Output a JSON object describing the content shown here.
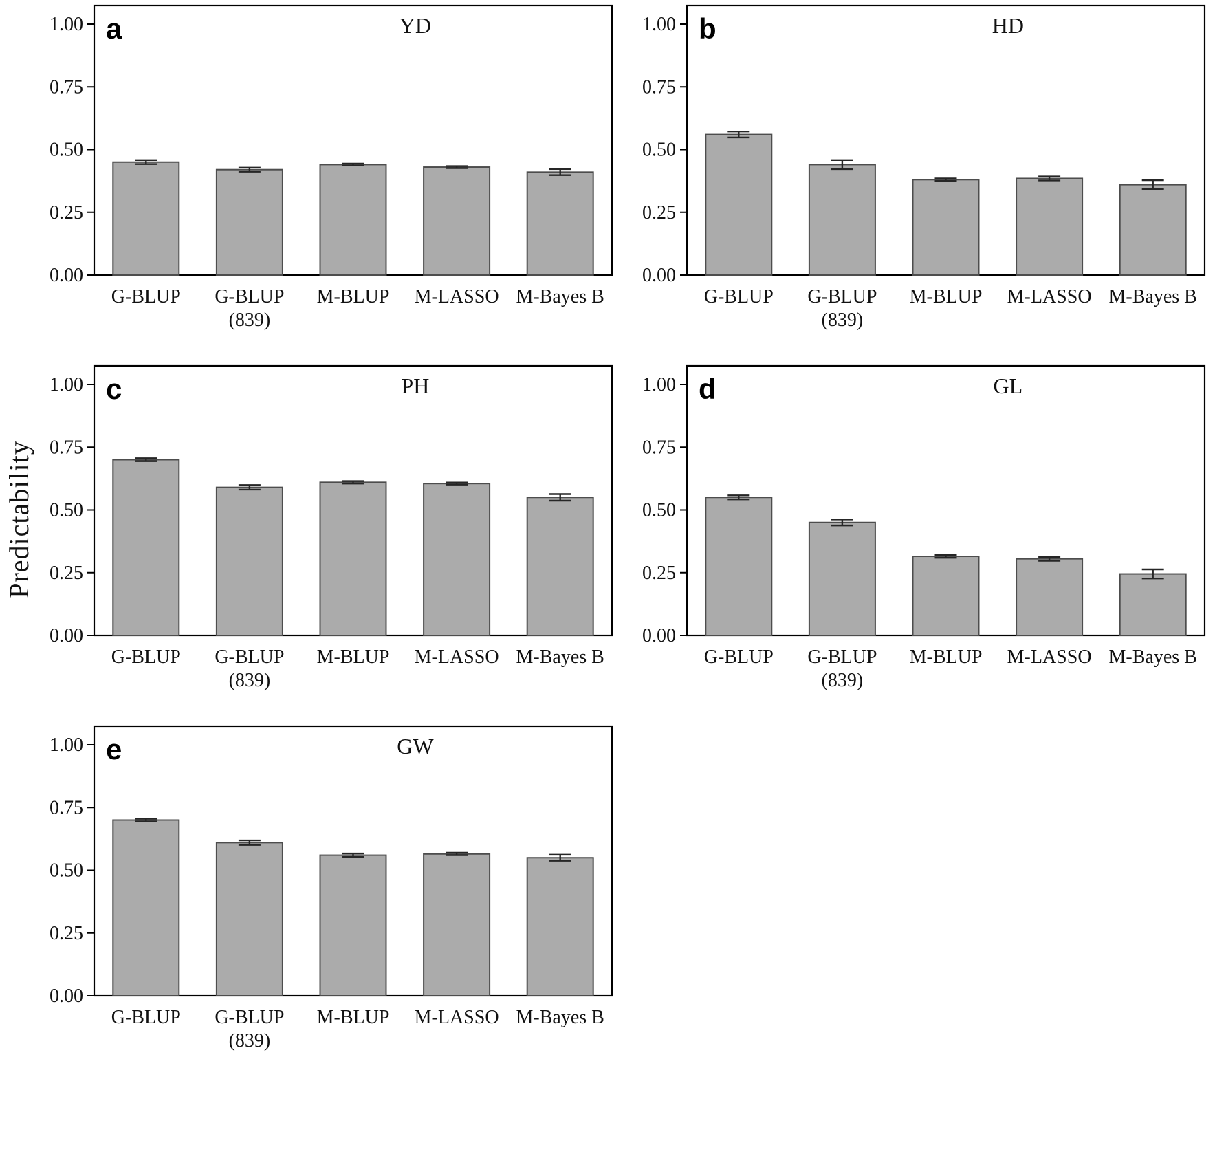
{
  "figure": {
    "ylabel": "Predictability"
  },
  "colors": {
    "bar_fill": "#ababab",
    "bar_stroke": "#4d4d4d",
    "error_bar": "#262626",
    "axis": "#000000",
    "background": "#ffffff"
  },
  "chart_data": [
    {
      "type": "bar",
      "panel": "a",
      "title": "YD",
      "categories": [
        "G-BLUP",
        "G-BLUP (839)",
        "M-BLUP",
        "M-LASSO",
        "M-Bayes B"
      ],
      "category_lines": [
        [
          "G-BLUP"
        ],
        [
          "G-BLUP",
          "(839)"
        ],
        [
          "M-BLUP"
        ],
        [
          "M-LASSO"
        ],
        [
          "M-Bayes B"
        ]
      ],
      "values": [
        0.45,
        0.42,
        0.44,
        0.43,
        0.41
      ],
      "errors": [
        0.008,
        0.008,
        0.004,
        0.004,
        0.012
      ],
      "xlabel": "",
      "ylabel": "Predictability",
      "ylim": [
        0,
        1.0
      ],
      "yticks": [
        0,
        0.25,
        0.5,
        0.75,
        1.0
      ],
      "ytick_labels": [
        "0.00",
        "0.25",
        "0.50",
        "0.75",
        "1.00"
      ],
      "grid": false,
      "legend": "none"
    },
    {
      "type": "bar",
      "panel": "b",
      "title": "HD",
      "categories": [
        "G-BLUP",
        "G-BLUP (839)",
        "M-BLUP",
        "M-LASSO",
        "M-Bayes B"
      ],
      "category_lines": [
        [
          "G-BLUP"
        ],
        [
          "G-BLUP",
          "(839)"
        ],
        [
          "M-BLUP"
        ],
        [
          "M-LASSO"
        ],
        [
          "M-Bayes B"
        ]
      ],
      "values": [
        0.56,
        0.44,
        0.38,
        0.385,
        0.36
      ],
      "errors": [
        0.012,
        0.018,
        0.005,
        0.008,
        0.018
      ],
      "xlabel": "",
      "ylabel": "Predictability",
      "ylim": [
        0,
        1.0
      ],
      "yticks": [
        0,
        0.25,
        0.5,
        0.75,
        1.0
      ],
      "ytick_labels": [
        "0.00",
        "0.25",
        "0.50",
        "0.75",
        "1.00"
      ],
      "grid": false,
      "legend": "none"
    },
    {
      "type": "bar",
      "panel": "c",
      "title": "PH",
      "categories": [
        "G-BLUP",
        "G-BLUP (839)",
        "M-BLUP",
        "M-LASSO",
        "M-Bayes B"
      ],
      "category_lines": [
        [
          "G-BLUP"
        ],
        [
          "G-BLUP",
          "(839)"
        ],
        [
          "M-BLUP"
        ],
        [
          "M-LASSO"
        ],
        [
          "M-Bayes B"
        ]
      ],
      "values": [
        0.7,
        0.59,
        0.61,
        0.605,
        0.55
      ],
      "errors": [
        0.006,
        0.009,
        0.005,
        0.004,
        0.013
      ],
      "xlabel": "",
      "ylabel": "Predictability",
      "ylim": [
        0,
        1.0
      ],
      "yticks": [
        0,
        0.25,
        0.5,
        0.75,
        1.0
      ],
      "ytick_labels": [
        "0.00",
        "0.25",
        "0.50",
        "0.75",
        "1.00"
      ],
      "grid": false,
      "legend": "none"
    },
    {
      "type": "bar",
      "panel": "d",
      "title": "GL",
      "categories": [
        "G-BLUP",
        "G-BLUP (839)",
        "M-BLUP",
        "M-LASSO",
        "M-Bayes B"
      ],
      "category_lines": [
        [
          "G-BLUP"
        ],
        [
          "G-BLUP",
          "(839)"
        ],
        [
          "M-BLUP"
        ],
        [
          "M-LASSO"
        ],
        [
          "M-Bayes B"
        ]
      ],
      "values": [
        0.55,
        0.45,
        0.315,
        0.305,
        0.245
      ],
      "errors": [
        0.008,
        0.012,
        0.006,
        0.008,
        0.018
      ],
      "xlabel": "",
      "ylabel": "Predictability",
      "ylim": [
        0,
        1.0
      ],
      "yticks": [
        0,
        0.25,
        0.5,
        0.75,
        1.0
      ],
      "ytick_labels": [
        "0.00",
        "0.25",
        "0.50",
        "0.75",
        "1.00"
      ],
      "grid": false,
      "legend": "none"
    },
    {
      "type": "bar",
      "panel": "e",
      "title": "GW",
      "categories": [
        "G-BLUP",
        "G-BLUP (839)",
        "M-BLUP",
        "M-LASSO",
        "M-Bayes B"
      ],
      "category_lines": [
        [
          "G-BLUP"
        ],
        [
          "G-BLUP",
          "(839)"
        ],
        [
          "M-BLUP"
        ],
        [
          "M-LASSO"
        ],
        [
          "M-Bayes B"
        ]
      ],
      "values": [
        0.7,
        0.61,
        0.56,
        0.565,
        0.55
      ],
      "errors": [
        0.006,
        0.009,
        0.007,
        0.005,
        0.012
      ],
      "xlabel": "",
      "ylabel": "Predictability",
      "ylim": [
        0,
        1.0
      ],
      "yticks": [
        0,
        0.25,
        0.5,
        0.75,
        1.0
      ],
      "ytick_labels": [
        "0.00",
        "0.25",
        "0.50",
        "0.75",
        "1.00"
      ],
      "grid": false,
      "legend": "none"
    }
  ]
}
